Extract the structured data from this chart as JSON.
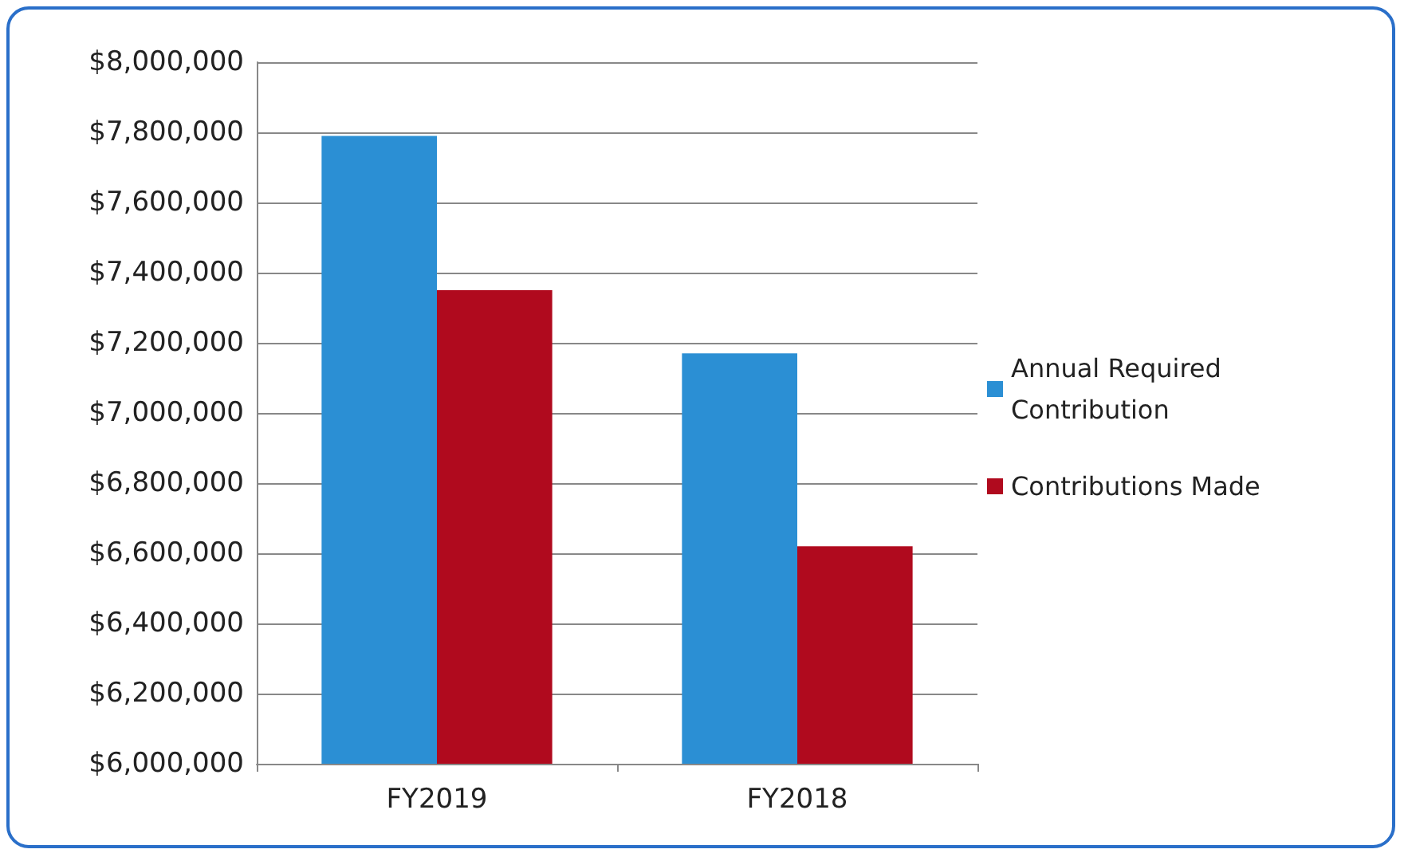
{
  "chart_data": {
    "type": "bar",
    "categories": [
      "FY2019",
      "FY2018"
    ],
    "series": [
      {
        "name": "Annual Required Contribution",
        "color": "#2b8fd4",
        "values": [
          7790000,
          7170000
        ]
      },
      {
        "name": "Contributions Made",
        "color": "#b00a1e",
        "values": [
          7350000,
          6620000
        ]
      }
    ],
    "ylim": [
      6000000,
      8000000
    ],
    "yticks": [
      {
        "value": 6000000,
        "label": "$6,000,000"
      },
      {
        "value": 6200000,
        "label": "$6,200,000"
      },
      {
        "value": 6400000,
        "label": "$6,400,000"
      },
      {
        "value": 6600000,
        "label": "$6,600,000"
      },
      {
        "value": 6800000,
        "label": "$6,800,000"
      },
      {
        "value": 7000000,
        "label": "$7,000,000"
      },
      {
        "value": 7200000,
        "label": "$7,200,000"
      },
      {
        "value": 7400000,
        "label": "$7,400,000"
      },
      {
        "value": 7600000,
        "label": "$7,600,000"
      },
      {
        "value": 7800000,
        "label": "$7,800,000"
      },
      {
        "value": 8000000,
        "label": "$8,000,000"
      }
    ],
    "grid": "y",
    "legend": "right"
  }
}
